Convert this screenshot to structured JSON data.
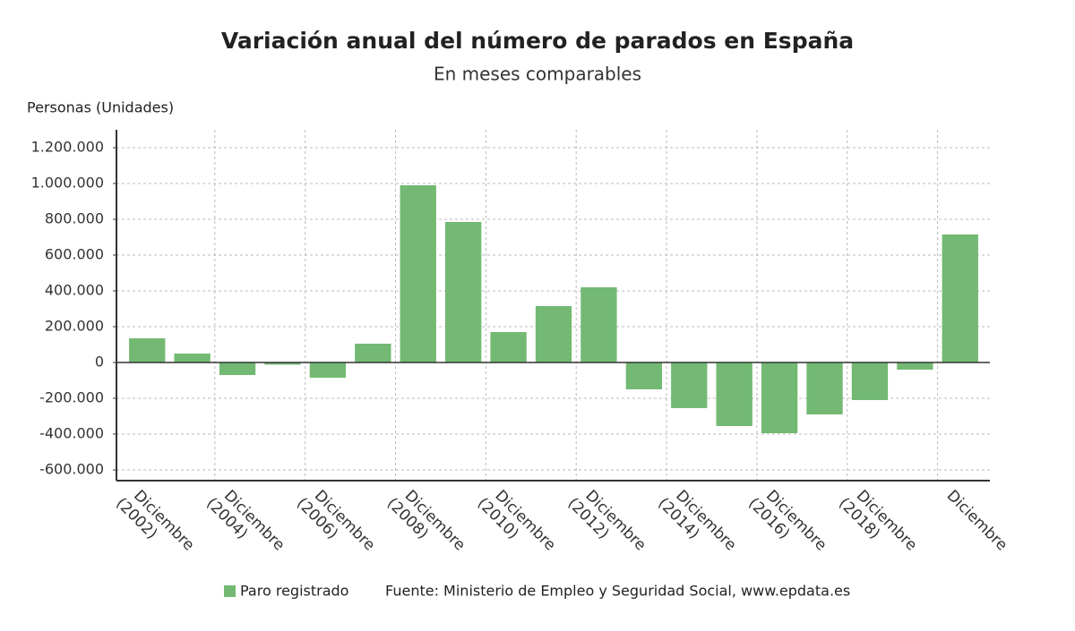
{
  "chart_data": {
    "type": "bar",
    "title": "Variación anual del número de parados en España",
    "subtitle": "En meses comparables",
    "y_label": "Personas (Unidades)",
    "source": "Fuente: Ministerio de Empleo y Seguridad Social, www.epdata.es",
    "categories": [
      "Diciembre (2002)",
      null,
      "Diciembre (2004)",
      null,
      "Diciembre (2006)",
      null,
      "Diciembre (2008)",
      null,
      "Diciembre (2010)",
      null,
      "Diciembre (2012)",
      null,
      "Diciembre (2014)",
      null,
      "Diciembre (2016)",
      null,
      "Diciembre (2018)",
      null,
      "Diciembre"
    ],
    "series": [
      {
        "name": "Paro registrado",
        "color": "#73b973",
        "values": [
          135000,
          50000,
          -70000,
          -12000,
          -85000,
          105000,
          990000,
          785000,
          170000,
          315000,
          420000,
          -150000,
          -255000,
          -355000,
          -395000,
          -290000,
          -210000,
          -40000,
          715000
        ]
      }
    ],
    "ylim": [
      -660000,
      1300000
    ],
    "yticks": [
      {
        "value": -600000,
        "label": "-600.000"
      },
      {
        "value": -400000,
        "label": "-400.000"
      },
      {
        "value": -200000,
        "label": "-200.000"
      },
      0,
      {
        "value": 200000,
        "label": "200.000"
      },
      {
        "value": 400000,
        "label": "400.000"
      },
      {
        "value": 600000,
        "label": "600.000"
      },
      {
        "value": 800000,
        "label": "800.000"
      },
      {
        "value": 1000000,
        "label": "1.000.000"
      },
      {
        "value": 1200000,
        "label": "1.200.000"
      }
    ],
    "grid": true
  }
}
